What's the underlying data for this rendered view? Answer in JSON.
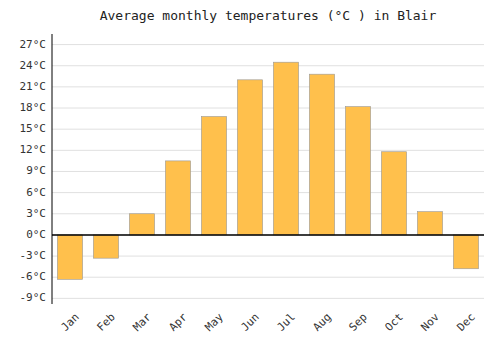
{
  "chart_data": {
    "type": "bar",
    "title": "Average monthly temperatures (°C ) in Blair",
    "categories": [
      "Jan",
      "Feb",
      "Mar",
      "Apr",
      "May",
      "Jun",
      "Jul",
      "Aug",
      "Sep",
      "Oct",
      "Nov",
      "Dec"
    ],
    "values": [
      -6.3,
      -3.3,
      3.0,
      10.5,
      16.8,
      22.0,
      24.5,
      22.8,
      18.2,
      11.8,
      3.3,
      -4.8
    ],
    "color": "#FFC04C",
    "ylim": [
      -9.8,
      28.5
    ],
    "yticks": [
      {
        "value": -9,
        "label": "-9°C"
      },
      {
        "value": -6,
        "label": "-6°C"
      },
      {
        "value": -3,
        "label": "-3°C"
      },
      {
        "value": 0,
        "label": "0°C"
      },
      {
        "value": 3,
        "label": "3°C"
      },
      {
        "value": 6,
        "label": "6°C"
      },
      {
        "value": 9,
        "label": "9°C"
      },
      {
        "value": 12,
        "label": "12°C"
      },
      {
        "value": 15,
        "label": "15°C"
      },
      {
        "value": 18,
        "label": "18°C"
      },
      {
        "value": 21,
        "label": "21°C"
      },
      {
        "value": 24,
        "label": "24°C"
      },
      {
        "value": 27,
        "label": "27°C"
      }
    ],
    "grid": true
  }
}
